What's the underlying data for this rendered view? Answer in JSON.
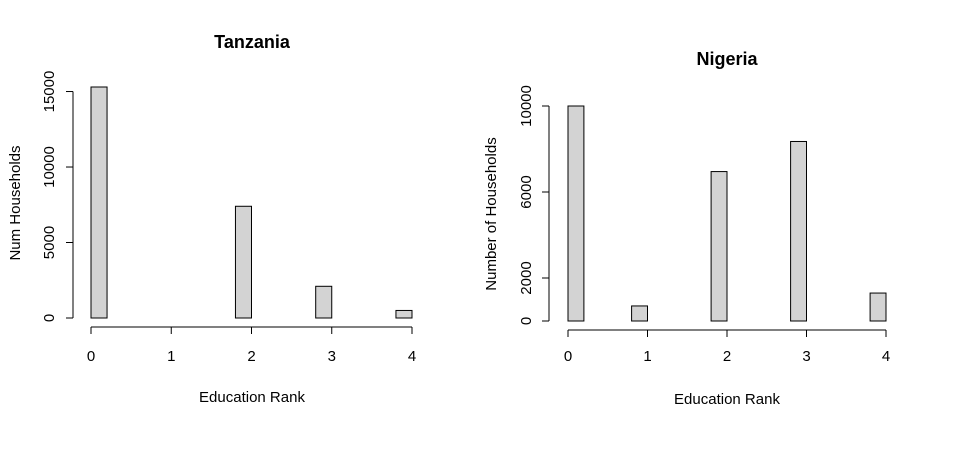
{
  "bar_color": "#d3d3d3",
  "chart_data": [
    {
      "type": "bar",
      "title": "Tanzania",
      "xlabel": "Education Rank",
      "ylabel": "Num Households",
      "bins": [
        [
          0,
          0.2
        ],
        [
          0.2,
          0.4
        ],
        [
          0.4,
          0.6
        ],
        [
          0.6,
          0.8
        ],
        [
          0.8,
          1.0
        ],
        [
          1.0,
          1.2
        ],
        [
          1.2,
          1.4
        ],
        [
          1.4,
          1.6
        ],
        [
          1.6,
          1.8
        ],
        [
          1.8,
          2.0
        ],
        [
          2.0,
          2.2
        ],
        [
          2.2,
          2.4
        ],
        [
          2.4,
          2.6
        ],
        [
          2.6,
          2.8
        ],
        [
          2.8,
          3.0
        ],
        [
          3.0,
          3.2
        ],
        [
          3.2,
          3.4
        ],
        [
          3.4,
          3.6
        ],
        [
          3.6,
          3.8
        ],
        [
          3.8,
          4.0
        ]
      ],
      "values": [
        15300,
        0,
        0,
        0,
        0,
        0,
        0,
        0,
        0,
        7400,
        0,
        0,
        0,
        0,
        2100,
        0,
        0,
        0,
        0,
        500
      ],
      "xticks": [
        "0",
        "1",
        "2",
        "3",
        "4"
      ],
      "yticks": [
        "0",
        "5000",
        "10000",
        "15000"
      ],
      "xlim": [
        0,
        4
      ],
      "ylim": [
        0,
        15300
      ]
    },
    {
      "type": "bar",
      "title": "Nigeria",
      "xlabel": "Education Rank",
      "ylabel": "Number of Households",
      "bins": [
        [
          0,
          0.2
        ],
        [
          0.2,
          0.4
        ],
        [
          0.4,
          0.6
        ],
        [
          0.6,
          0.8
        ],
        [
          0.8,
          1.0
        ],
        [
          1.0,
          1.2
        ],
        [
          1.2,
          1.4
        ],
        [
          1.4,
          1.6
        ],
        [
          1.6,
          1.8
        ],
        [
          1.8,
          2.0
        ],
        [
          2.0,
          2.2
        ],
        [
          2.2,
          2.4
        ],
        [
          2.4,
          2.6
        ],
        [
          2.6,
          2.8
        ],
        [
          2.8,
          3.0
        ],
        [
          3.0,
          3.2
        ],
        [
          3.2,
          3.4
        ],
        [
          3.4,
          3.6
        ],
        [
          3.6,
          3.8
        ],
        [
          3.8,
          4.0
        ]
      ],
      "values": [
        10000,
        0,
        0,
        0,
        700,
        0,
        0,
        0,
        0,
        6950,
        0,
        0,
        0,
        0,
        8350,
        0,
        0,
        0,
        0,
        1300
      ],
      "xticks": [
        "0",
        "1",
        "2",
        "3",
        "4"
      ],
      "yticks": [
        "0",
        "2000",
        "6000",
        "10000"
      ],
      "xlim": [
        0,
        4
      ],
      "ylim": [
        0,
        10000
      ]
    }
  ]
}
